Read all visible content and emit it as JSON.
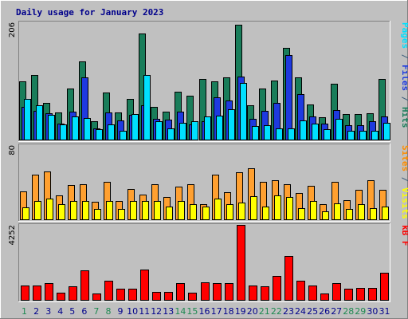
{
  "chart_data": {
    "type": "bar",
    "title": "Daily usage for January 2023",
    "categories": [
      "1",
      "2",
      "3",
      "4",
      "5",
      "6",
      "7",
      "8",
      "9",
      "10",
      "11",
      "12",
      "13",
      "14",
      "15",
      "16",
      "17",
      "18",
      "19",
      "20",
      "21",
      "22",
      "23",
      "24",
      "25",
      "26",
      "27",
      "28",
      "29",
      "30",
      "31"
    ],
    "weekend_days": [
      "1",
      "7",
      "8",
      "14",
      "15",
      "21",
      "22",
      "28",
      "29"
    ],
    "panels": [
      {
        "id": "hits-files-pages",
        "ymax": 206,
        "ymax_label": "206",
        "right_label": [
          {
            "text": "Pages",
            "color": "#00e0ff"
          },
          {
            "text": " / ",
            "color": "#3a5a7a"
          },
          {
            "text": "Files",
            "color": "#1e3ae0"
          },
          {
            "text": " / ",
            "color": "#3a5a7a"
          },
          {
            "text": "Hits",
            "color": "#197d5a"
          }
        ],
        "series": [
          {
            "name": "Hits",
            "color": "#197d5a",
            "values": [
              102,
              113,
              65,
              48,
              90,
              137,
              32,
              83,
              47,
              72,
              186,
              58,
              49,
              84,
              77,
              106,
              102,
              110,
              202,
              60,
              90,
              103,
              161,
              109,
              61,
              39,
              98,
              45,
              45,
              46,
              106
            ]
          },
          {
            "name": "Files",
            "color": "#1e3ae0",
            "values": [
              58,
              51,
              46,
              28,
              49,
              110,
              19,
              47,
              34,
              44,
              60,
              36,
              35,
              49,
              26,
              32,
              74,
              69,
              111,
              37,
              51,
              64,
              148,
              80,
              40,
              28,
              52,
              25,
              25,
              32,
              41
            ]
          },
          {
            "name": "Pages",
            "color": "#00e0ff",
            "values": [
              72,
              60,
              44,
              26,
              40,
              38,
              18,
              26,
              15,
              45,
              114,
              32,
              20,
              30,
              32,
              40,
              42,
              53,
              100,
              24,
              25,
              19,
              20,
              34,
              28,
              18,
              37,
              15,
              16,
              16,
              30
            ]
          }
        ]
      },
      {
        "id": "visits-sites",
        "ymax": 80,
        "ymax_label": "80",
        "right_label": [
          {
            "text": "Sites",
            "color": "#ff8c00"
          },
          {
            "text": " / ",
            "color": "#3a5a7a"
          },
          {
            "text": "Visits",
            "color": "#ffff00"
          }
        ],
        "series": [
          {
            "name": "Visits",
            "color": "#ffa030",
            "values": [
              30,
              48,
              52,
              26,
              37,
              38,
              19,
              40,
              20,
              33,
              27,
              38,
              24,
              35,
              38,
              16,
              48,
              29,
              51,
              55,
              40,
              42,
              38,
              28,
              36,
              16,
              40,
              21,
              32,
              42,
              32
            ]
          },
          {
            "name": "Sites",
            "color": "#ffff00",
            "values": [
              13,
              20,
              22,
              16,
              20,
              20,
              11,
              20,
              11,
              20,
              20,
              20,
              14,
              20,
              16,
              14,
              22,
              16,
              18,
              25,
              14,
              26,
              24,
              12,
              20,
              9,
              17,
              11,
              16,
              12,
              14
            ]
          }
        ]
      },
      {
        "id": "kbytes",
        "ymax": 4252,
        "ymax_label": "4252",
        "right_label": [
          {
            "text": "kB F",
            "color": "#ff0000"
          }
        ],
        "series": [
          {
            "name": "kB F",
            "color": "#ff0000",
            "values": [
              820,
              800,
              950,
              400,
              780,
              1690,
              380,
              1080,
              650,
              620,
              1730,
              450,
              460,
              940,
              400,
              1000,
              970,
              930,
              4252,
              800,
              780,
              1350,
              2490,
              1080,
              820,
              380,
              940,
              620,
              700,
              700,
              1520
            ]
          }
        ]
      }
    ]
  }
}
